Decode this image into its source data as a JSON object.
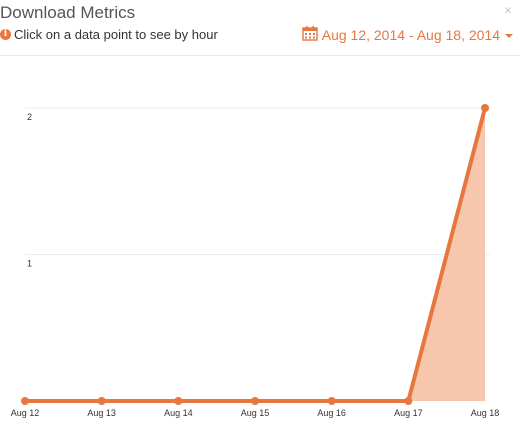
{
  "widget": {
    "title": "Download Metrics",
    "close_label": "×",
    "hint_text": "Click on a data point to see by hour",
    "date_range": "Aug 12, 2014 - Aug 18, 2014",
    "icons": {
      "info": "info-circle-icon",
      "calendar": "calendar-icon",
      "dropdown": "caret-down-icon",
      "close": "close-icon"
    }
  },
  "colors": {
    "accent": "#e8763f",
    "area_fill": "#f6c7ad",
    "grid": "#eeeeee"
  },
  "chart_data": {
    "type": "area",
    "categories": [
      "Aug 12",
      "Aug 13",
      "Aug 14",
      "Aug 15",
      "Aug 16",
      "Aug 17",
      "Aug 18"
    ],
    "series": [
      {
        "values": [
          0,
          0,
          0,
          0,
          0,
          0,
          2
        ]
      }
    ],
    "y_ticks": [
      "1",
      "2"
    ],
    "ylim": [
      0,
      2
    ],
    "grid": true
  }
}
